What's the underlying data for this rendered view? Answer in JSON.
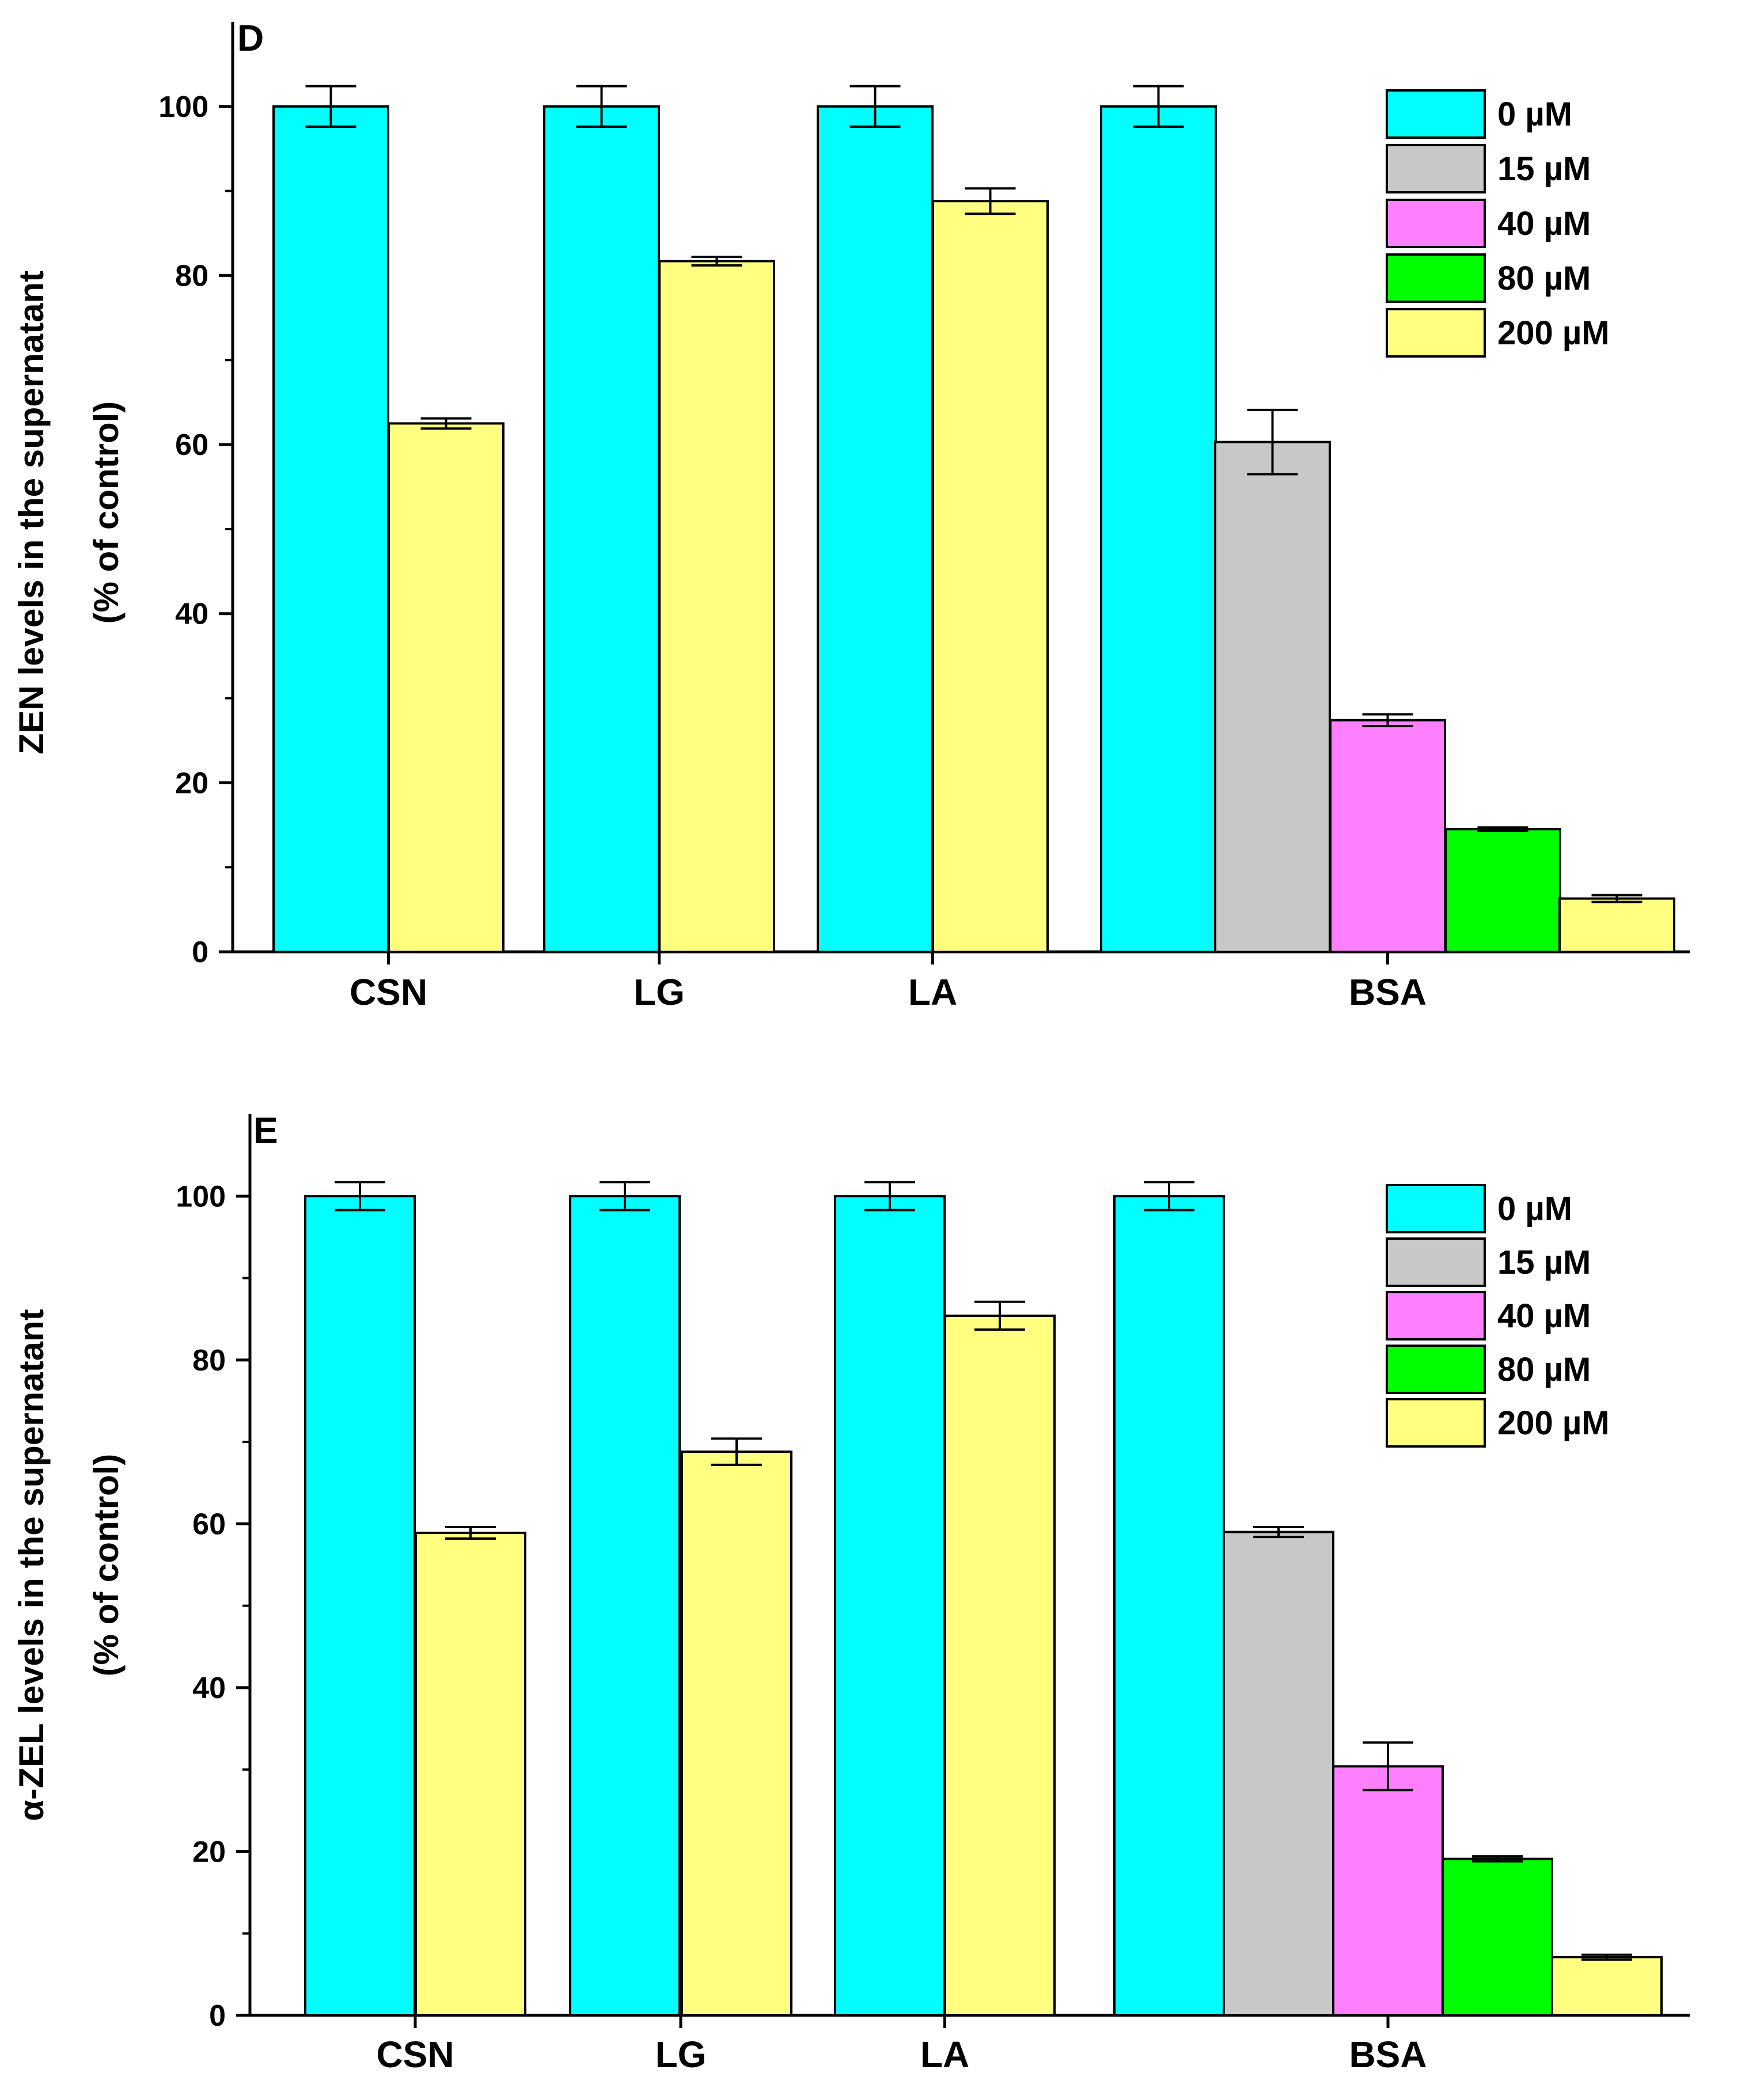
{
  "chart_data": [
    {
      "panel_label": "D",
      "type": "bar",
      "ylabel": [
        "ZEN levels in the supernatant",
        "(% of control)"
      ],
      "ylim": [
        0,
        110
      ],
      "yticks": [
        0,
        20,
        40,
        60,
        80,
        100
      ],
      "categories": [
        "CSN",
        "LG",
        "LA",
        "BSA"
      ],
      "legend": {
        "position": "top-right",
        "entries": [
          {
            "label": "0 µM",
            "color": "#00FFFF"
          },
          {
            "label": "15 µM",
            "color": "#C8C8C8"
          },
          {
            "label": "40 µM",
            "color": "#FF80FF"
          },
          {
            "label": "80 µM",
            "color": "#00FF00"
          },
          {
            "label": "200 µM",
            "color": "#FFFF80"
          }
        ]
      },
      "groups": [
        {
          "category": "CSN",
          "bars": [
            {
              "series": "0 µM",
              "value": 100,
              "error": 2.4
            },
            {
              "series": "200 µM",
              "value": 62.5,
              "error": 0.6
            }
          ]
        },
        {
          "category": "LG",
          "bars": [
            {
              "series": "0 µM",
              "value": 100,
              "error": 2.4
            },
            {
              "series": "200 µM",
              "value": 81.7,
              "error": 0.5
            }
          ]
        },
        {
          "category": "LA",
          "bars": [
            {
              "series": "0 µM",
              "value": 100,
              "error": 2.4
            },
            {
              "series": "200 µM",
              "value": 88.8,
              "error": 1.5
            }
          ]
        },
        {
          "category": "BSA",
          "bars": [
            {
              "series": "0 µM",
              "value": 100,
              "error": 2.4
            },
            {
              "series": "15 µM",
              "value": 60.3,
              "error": 3.8
            },
            {
              "series": "40 µM",
              "value": 27.4,
              "error": 0.7
            },
            {
              "series": "80 µM",
              "value": 14.5,
              "error": 0.2
            },
            {
              "series": "200 µM",
              "value": 6.3,
              "error": 0.4
            }
          ]
        }
      ]
    },
    {
      "panel_label": "E",
      "type": "bar",
      "ylabel": [
        "α-ZEL levels in the supernatant",
        "(% of control)"
      ],
      "ylim": [
        0,
        110
      ],
      "yticks": [
        0,
        20,
        40,
        60,
        80,
        100
      ],
      "categories": [
        "CSN",
        "LG",
        "LA",
        "BSA"
      ],
      "legend": {
        "position": "top-right",
        "entries": [
          {
            "label": "0 µM",
            "color": "#00FFFF"
          },
          {
            "label": "15 µM",
            "color": "#C8C8C8"
          },
          {
            "label": "40 µM",
            "color": "#FF80FF"
          },
          {
            "label": "80 µM",
            "color": "#00FF00"
          },
          {
            "label": "200 µM",
            "color": "#FFFF80"
          }
        ]
      },
      "groups": [
        {
          "category": "CSN",
          "bars": [
            {
              "series": "0 µM",
              "value": 100,
              "error": 1.7
            },
            {
              "series": "200 µM",
              "value": 58.9,
              "error": 0.7
            }
          ]
        },
        {
          "category": "LG",
          "bars": [
            {
              "series": "0 µM",
              "value": 100,
              "error": 1.7
            },
            {
              "series": "200 µM",
              "value": 68.8,
              "error": 1.6
            }
          ]
        },
        {
          "category": "LA",
          "bars": [
            {
              "series": "0 µM",
              "value": 100,
              "error": 1.7
            },
            {
              "series": "200 µM",
              "value": 85.4,
              "error": 1.7
            }
          ]
        },
        {
          "category": "BSA",
          "bars": [
            {
              "series": "0 µM",
              "value": 100,
              "error": 1.7
            },
            {
              "series": "15 µM",
              "value": 59.0,
              "error": 0.6
            },
            {
              "series": "40 µM",
              "value": 30.4,
              "error": 2.9
            },
            {
              "series": "80 µM",
              "value": 19.1,
              "error": 0.3
            },
            {
              "series": "200 µM",
              "value": 7.1,
              "error": 0.3
            }
          ]
        }
      ]
    }
  ]
}
